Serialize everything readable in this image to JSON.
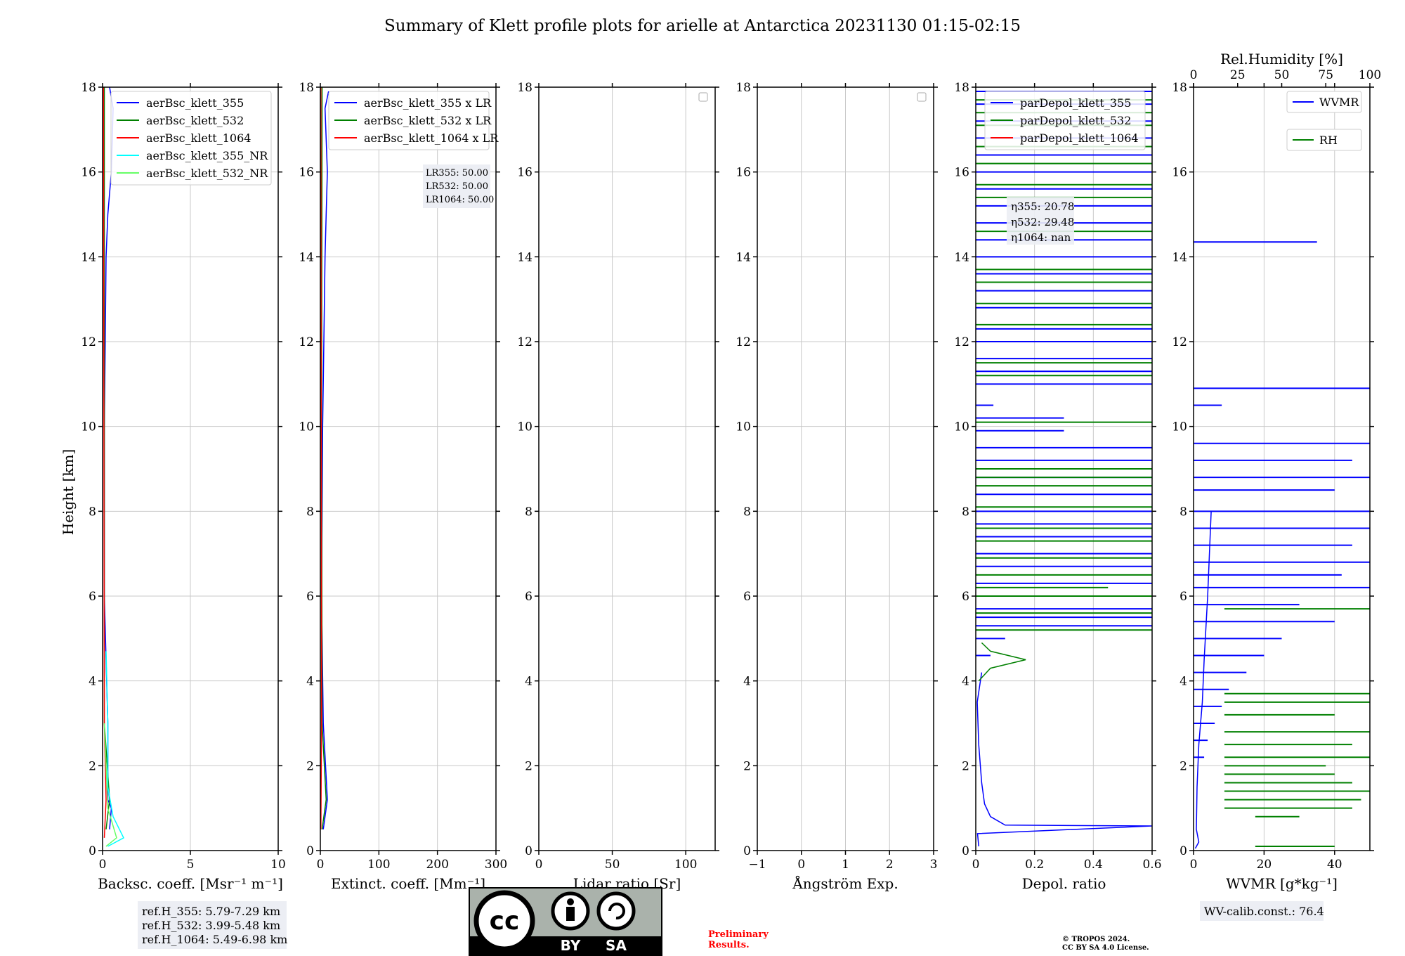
{
  "figure": {
    "title": "Summary of Klett profile plots for arielle at Antarctica 20231130 01:15-02:15",
    "y_label": "Height [km]"
  },
  "colors": {
    "c355": "#0000ff",
    "c532": "#008000",
    "c1064": "#ff0000",
    "c355nr": "#00ffff",
    "c532nr": "#66ff66",
    "grid": "#c8c8c8",
    "box_bg": "#eceef4",
    "prelim": "#ff0000"
  },
  "chart_data": [
    {
      "type": "line",
      "name": "backscatter",
      "xlabel": "Backsc. coeff. [Msr⁻¹ m⁻¹]",
      "ylabel": "Height [km]",
      "xlim": [
        0,
        10
      ],
      "ylim": [
        0,
        18
      ],
      "xticks": [
        0,
        5,
        10
      ],
      "yticks": [
        0,
        2,
        4,
        6,
        8,
        10,
        12,
        14,
        16,
        18
      ],
      "grid": true,
      "legend_position": "top-right",
      "legend": [
        "aerBsc_klett_355",
        "aerBsc_klett_532",
        "aerBsc_klett_1064",
        "aerBsc_klett_355_NR",
        "aerBsc_klett_532_NR"
      ],
      "series": [
        {
          "name": "aerBsc_klett_355",
          "color": "c355",
          "points": [
            [
              0.4,
              0.5
            ],
            [
              0.5,
              1.0
            ],
            [
              0.3,
              1.2
            ],
            [
              0.3,
              3
            ],
            [
              0.1,
              6
            ],
            [
              0.1,
              10
            ],
            [
              0.15,
              12
            ],
            [
              0.2,
              14
            ],
            [
              0.3,
              15
            ],
            [
              0.5,
              16
            ],
            [
              0.6,
              17.5
            ],
            [
              0.4,
              18
            ]
          ]
        },
        {
          "name": "aerBsc_klett_532",
          "color": "c532",
          "points": [
            [
              0.2,
              0.5
            ],
            [
              0.4,
              1.2
            ],
            [
              0.1,
              3
            ],
            [
              0.1,
              10
            ],
            [
              0.1,
              18
            ]
          ]
        },
        {
          "name": "aerBsc_klett_1064",
          "color": "c1064",
          "points": [
            [
              0.1,
              0.3
            ],
            [
              0.2,
              1.2
            ],
            [
              0.1,
              3
            ],
            [
              0.05,
              18
            ]
          ]
        },
        {
          "name": "aerBsc_klett_355_NR",
          "color": "c355nr",
          "points": [
            [
              0.3,
              0.1
            ],
            [
              1.2,
              0.3
            ],
            [
              0.6,
              0.8
            ],
            [
              0.3,
              1.5
            ],
            [
              0.3,
              3
            ],
            [
              0.2,
              4.7
            ]
          ]
        },
        {
          "name": "aerBsc_klett_532_NR",
          "color": "c532nr",
          "points": [
            [
              0.2,
              0.1
            ],
            [
              0.8,
              0.3
            ],
            [
              0.3,
              1.0
            ],
            [
              0.1,
              3
            ]
          ]
        }
      ],
      "annotation": [
        "ref.H_355: 5.79-7.29 km",
        "ref.H_532: 3.99-5.48 km",
        "ref.H_1064: 5.49-6.98 km"
      ]
    },
    {
      "type": "line",
      "name": "extinction",
      "xlabel": "Extinct. coeff. [Mm⁻¹]",
      "xlim": [
        0,
        300
      ],
      "ylim": [
        0,
        18
      ],
      "xticks": [
        0,
        100,
        200,
        300
      ],
      "yticks": [
        0,
        2,
        4,
        6,
        8,
        10,
        12,
        14,
        16,
        18
      ],
      "grid": true,
      "legend_position": "top-right",
      "legend": [
        "aerBsc_klett_355 x LR",
        "aerBsc_klett_532 x LR",
        "aerBsc_klett_1064 x LR"
      ],
      "series": [
        {
          "name": "aerBsc_klett_355 x LR",
          "color": "c355",
          "points": [
            [
              5,
              0.5
            ],
            [
              12,
              1.2
            ],
            [
              5,
              3
            ],
            [
              2,
              6
            ],
            [
              4,
              10
            ],
            [
              6,
              12
            ],
            [
              8,
              14
            ],
            [
              10,
              15
            ],
            [
              12,
              16
            ],
            [
              8,
              17.5
            ],
            [
              14,
              17.9
            ]
          ]
        },
        {
          "name": "aerBsc_klett_532 x LR",
          "color": "c532",
          "points": [
            [
              3,
              0.5
            ],
            [
              10,
              1.2
            ],
            [
              3,
              3
            ],
            [
              2,
              10
            ],
            [
              3,
              18
            ]
          ]
        },
        {
          "name": "aerBsc_klett_1064 x LR",
          "color": "c1064",
          "points": [
            [
              1,
              0.5
            ],
            [
              2,
              3
            ],
            [
              1,
              18
            ]
          ]
        }
      ],
      "annotation": [
        "LR355: 50.00",
        "LR532: 50.00",
        "LR1064: 50.00"
      ]
    },
    {
      "type": "line",
      "name": "lidar_ratio",
      "xlabel": "Lidar ratio [Sr]",
      "xlim": [
        0,
        120
      ],
      "ylim": [
        0,
        18
      ],
      "xticks": [
        0,
        50,
        100
      ],
      "yticks": [
        0,
        2,
        4,
        6,
        8,
        10,
        12,
        14,
        16,
        18
      ],
      "grid": true,
      "legend_position": "top-right",
      "legend": [],
      "series": []
    },
    {
      "type": "line",
      "name": "angstrom",
      "xlabel": "Ångström Exp.",
      "xlim": [
        -1,
        3
      ],
      "ylim": [
        0,
        18
      ],
      "xticks": [
        -1,
        0,
        1,
        2,
        3
      ],
      "yticks": [
        0,
        2,
        4,
        6,
        8,
        10,
        12,
        14,
        16,
        18
      ],
      "grid": true,
      "legend_position": "top-right",
      "legend": [],
      "series": []
    },
    {
      "type": "line",
      "name": "depol",
      "xlabel": "Depol. ratio",
      "xlim": [
        0,
        0.6
      ],
      "ylim": [
        0,
        18
      ],
      "xticks": [
        0.0,
        0.2,
        0.4,
        0.6
      ],
      "yticks": [
        0,
        2,
        4,
        6,
        8,
        10,
        12,
        14,
        16,
        18
      ],
      "grid": true,
      "legend_position": "top-right",
      "legend": [
        "parDepol_klett_355",
        "parDepol_klett_532",
        "parDepol_klett_1064"
      ],
      "annotation": [
        "η355: 20.78",
        "η532: 29.48",
        "η1064: nan"
      ],
      "series": [
        {
          "name": "parDepol_klett_355",
          "color": "c355",
          "points": [
            [
              0.01,
              0.1
            ],
            [
              0.006,
              0.4
            ],
            [
              0.6,
              0.58
            ],
            [
              0.1,
              0.6
            ],
            [
              0.05,
              0.8
            ],
            [
              0.03,
              1.1
            ],
            [
              0.02,
              1.6
            ],
            [
              0.01,
              2.5
            ],
            [
              0.005,
              3.5
            ],
            [
              0.02,
              4.2
            ]
          ],
          "spikes": [
            [
              4.6,
              0.05
            ],
            [
              5.0,
              0.1
            ],
            [
              5.3,
              0.6
            ],
            [
              5.5,
              0.6
            ],
            [
              5.7,
              0.6
            ],
            [
              6.0,
              0.6
            ],
            [
              6.3,
              0.6
            ],
            [
              6.7,
              0.6
            ],
            [
              7.0,
              0.6
            ],
            [
              7.4,
              0.6
            ],
            [
              7.7,
              0.6
            ],
            [
              8.0,
              0.6
            ],
            [
              8.4,
              0.6
            ],
            [
              8.8,
              0.6
            ],
            [
              9.2,
              0.6
            ],
            [
              9.5,
              0.6
            ],
            [
              9.9,
              0.3
            ],
            [
              10.2,
              0.3
            ],
            [
              10.5,
              0.06
            ],
            [
              11.0,
              0.6
            ],
            [
              11.3,
              0.6
            ],
            [
              11.6,
              0.6
            ],
            [
              12.0,
              0.6
            ],
            [
              12.3,
              0.6
            ],
            [
              12.8,
              0.6
            ],
            [
              13.2,
              0.6
            ],
            [
              13.6,
              0.6
            ],
            [
              14.0,
              0.6
            ],
            [
              14.4,
              0.6
            ],
            [
              14.8,
              0.6
            ],
            [
              15.2,
              0.6
            ],
            [
              15.6,
              0.6
            ],
            [
              16.0,
              0.6
            ],
            [
              16.4,
              0.6
            ],
            [
              16.8,
              0.6
            ],
            [
              17.2,
              0.6
            ],
            [
              17.6,
              0.6
            ],
            [
              17.9,
              0.6
            ]
          ]
        },
        {
          "name": "parDepol_klett_532",
          "color": "c532",
          "points": [
            [
              0.01,
              4.0
            ],
            [
              0.05,
              4.3
            ],
            [
              0.17,
              4.5
            ],
            [
              0.05,
              4.7
            ],
            [
              0.02,
              4.9
            ]
          ],
          "spikes": [
            [
              5.2,
              0.6
            ],
            [
              5.6,
              0.6
            ],
            [
              6.0,
              0.6
            ],
            [
              6.2,
              0.45
            ],
            [
              6.5,
              0.6
            ],
            [
              6.9,
              0.6
            ],
            [
              7.3,
              0.6
            ],
            [
              7.6,
              0.6
            ],
            [
              8.1,
              0.6
            ],
            [
              8.6,
              0.6
            ],
            [
              8.8,
              0.6
            ],
            [
              9.0,
              0.6
            ],
            [
              10.1,
              0.6
            ],
            [
              11.2,
              0.6
            ],
            [
              11.5,
              0.6
            ],
            [
              12.4,
              0.6
            ],
            [
              12.9,
              0.6
            ],
            [
              13.4,
              0.6
            ],
            [
              13.7,
              0.6
            ],
            [
              14.6,
              0.6
            ],
            [
              15.4,
              0.6
            ],
            [
              15.7,
              0.6
            ],
            [
              16.2,
              0.6
            ],
            [
              16.6,
              0.6
            ],
            [
              17.1,
              0.6
            ],
            [
              17.4,
              0.6
            ],
            [
              17.7,
              0.6
            ]
          ]
        }
      ]
    },
    {
      "type": "line",
      "name": "wvmr",
      "xlabel": "WVMR [g*kg⁻¹]",
      "x2label": "Rel.Humidity [%]",
      "xlim": [
        0,
        50
      ],
      "x2lim": [
        0,
        100
      ],
      "ylim": [
        0,
        18
      ],
      "xticks": [
        0,
        20,
        40
      ],
      "x2ticks": [
        0,
        25,
        50,
        75,
        100
      ],
      "yticks": [
        0,
        2,
        4,
        6,
        8,
        10,
        12,
        14,
        16,
        18
      ],
      "grid": true,
      "legend_position": "top-right",
      "legend": [
        "WVMR",
        "RH"
      ],
      "annotation": [
        "WV-calib.const.: 76.4"
      ],
      "series": [
        {
          "name": "WVMR",
          "color": "c355",
          "points": [
            [
              0.5,
              0.05
            ],
            [
              1.5,
              0.2
            ],
            [
              0.8,
              0.5
            ],
            [
              1.0,
              1.5
            ],
            [
              1.5,
              2.5
            ],
            [
              2.5,
              3.5
            ],
            [
              3.0,
              4.5
            ],
            [
              4.0,
              6.0
            ],
            [
              5.0,
              8.0
            ]
          ],
          "spikes": [
            [
              14.35,
              35
            ],
            [
              10.9,
              50
            ],
            [
              10.5,
              8
            ],
            [
              9.6,
              50
            ],
            [
              9.2,
              45
            ],
            [
              8.8,
              50
            ],
            [
              8.5,
              40
            ],
            [
              8.0,
              50
            ],
            [
              7.6,
              50
            ],
            [
              7.2,
              45
            ],
            [
              6.8,
              50
            ],
            [
              6.5,
              42
            ],
            [
              6.2,
              50
            ],
            [
              5.8,
              30
            ],
            [
              5.4,
              40
            ],
            [
              5.0,
              25
            ],
            [
              4.6,
              20
            ],
            [
              4.2,
              15
            ],
            [
              3.8,
              10
            ],
            [
              3.4,
              8
            ],
            [
              3.0,
              6
            ],
            [
              2.6,
              4
            ],
            [
              2.2,
              3
            ]
          ]
        },
        {
          "name": "RH",
          "color": "c532",
          "spikes_rh": [
            [
              0.1,
              80
            ],
            [
              0.4,
              35
            ],
            [
              0.8,
              60
            ],
            [
              1.0,
              90
            ],
            [
              1.2,
              95
            ],
            [
              1.4,
              100
            ],
            [
              1.6,
              90
            ],
            [
              1.8,
              80
            ],
            [
              2.0,
              75
            ],
            [
              2.2,
              100
            ],
            [
              2.5,
              90
            ],
            [
              2.8,
              100
            ],
            [
              3.2,
              80
            ],
            [
              3.5,
              100
            ],
            [
              3.7,
              100
            ],
            [
              5.7,
              100
            ]
          ]
        }
      ]
    }
  ],
  "license": {
    "by": "BY",
    "sa": "SA",
    "cc": "cc",
    "prelim_line1": "Preliminary",
    "prelim_line2": "Results.",
    "copyright_line1": "© TROPOS 2024.",
    "copyright_line2": "CC BY SA 4.0 License."
  }
}
